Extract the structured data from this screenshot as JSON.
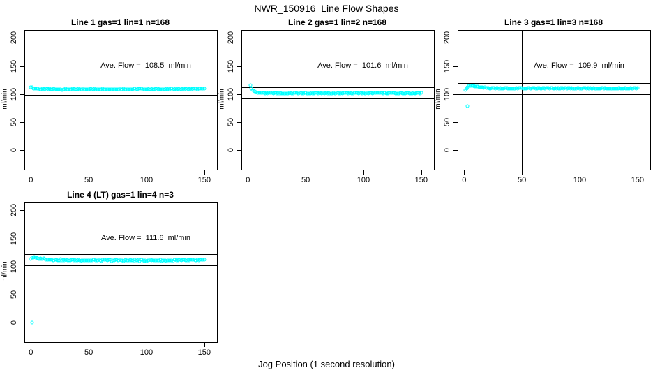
{
  "page": {
    "title": "NWR_150916  Line Flow Shapes",
    "xlabel": "Jog Position (1 second resolution)",
    "background": "#ffffff",
    "point_color": "#00ffff",
    "axis_color": "#000000"
  },
  "chart_data": [
    {
      "type": "scatter",
      "title": "Line 1 gas=1 lin=1 n=168",
      "ylabel": "ml/min",
      "annotation": "Ave. Flow =  108.5  ml/min",
      "ave_flow_ml_min": 108.5,
      "n": 168,
      "xlim": [
        -5,
        161
      ],
      "ylim": [
        -35.5,
        213
      ],
      "xticks": [
        0,
        50,
        100,
        150
      ],
      "yticks": [
        0,
        50,
        100,
        150,
        200
      ],
      "hlines": [
        118.5,
        98.5
      ],
      "vline": 50,
      "noise": 0.8,
      "x_start": 0,
      "x_end": 150,
      "points_keypoints": [
        [
          0,
          112.8
        ],
        [
          1,
          111.3
        ],
        [
          2,
          110.3
        ],
        [
          3,
          109.6
        ],
        [
          4,
          109.2
        ],
        [
          6,
          108.8
        ],
        [
          8,
          108.6
        ],
        [
          10,
          108.5
        ],
        [
          15,
          108.4
        ],
        [
          20,
          108.4
        ],
        [
          30,
          108.3
        ],
        [
          40,
          108.3
        ],
        [
          50,
          108.4
        ],
        [
          60,
          108.4
        ],
        [
          70,
          108.5
        ],
        [
          80,
          108.5
        ],
        [
          90,
          108.6
        ],
        [
          100,
          108.6
        ],
        [
          110,
          108.7
        ],
        [
          120,
          108.7
        ],
        [
          130,
          108.8
        ],
        [
          140,
          108.9
        ],
        [
          150,
          109.0
        ]
      ],
      "outliers": []
    },
    {
      "type": "scatter",
      "title": "Line 2 gas=1 lin=2 n=168",
      "ylabel": "ml/min",
      "annotation": "Ave. Flow =  101.6  ml/min",
      "ave_flow_ml_min": 101.6,
      "n": 168,
      "xlim": [
        -5,
        161
      ],
      "ylim": [
        -35.5,
        213
      ],
      "xticks": [
        0,
        50,
        100,
        150
      ],
      "yticks": [
        0,
        50,
        100,
        150,
        200
      ],
      "hlines": [
        111.6,
        91.6
      ],
      "vline": 50,
      "noise": 0.5,
      "x_start": 2,
      "x_end": 150,
      "points_keypoints": [
        [
          2,
          115.3
        ],
        [
          3,
          109.8
        ],
        [
          4,
          106.8
        ],
        [
          5,
          104.9
        ],
        [
          6,
          103.6
        ],
        [
          7,
          102.8
        ],
        [
          8,
          102.3
        ],
        [
          9,
          102.0
        ],
        [
          10,
          101.8
        ],
        [
          12,
          101.6
        ],
        [
          15,
          101.4
        ],
        [
          20,
          101.3
        ],
        [
          30,
          101.2
        ],
        [
          50,
          101.3
        ],
        [
          70,
          101.3
        ],
        [
          90,
          101.4
        ],
        [
          110,
          101.4
        ],
        [
          130,
          101.4
        ],
        [
          150,
          101.5
        ]
      ],
      "outliers": []
    },
    {
      "type": "scatter",
      "title": "Line 3 gas=1 lin=3 n=168",
      "ylabel": "ml/min",
      "annotation": "Ave. Flow =  109.9  ml/min",
      "ave_flow_ml_min": 109.9,
      "n": 168,
      "xlim": [
        -5,
        161
      ],
      "ylim": [
        -35.5,
        213
      ],
      "xticks": [
        0,
        50,
        100,
        150
      ],
      "yticks": [
        0,
        50,
        100,
        150,
        200
      ],
      "hlines": [
        119.9,
        99.9
      ],
      "vline": 50,
      "noise": 0.7,
      "x_start": 1,
      "x_end": 150,
      "points_keypoints": [
        [
          1,
          107.5
        ],
        [
          2,
          109.0
        ],
        [
          3,
          112.0
        ],
        [
          4,
          113.8
        ],
        [
          5,
          114.8
        ],
        [
          6,
          114.9
        ],
        [
          7,
          114.5
        ],
        [
          8,
          113.9
        ],
        [
          9,
          113.4
        ],
        [
          10,
          112.9
        ],
        [
          12,
          112.2
        ],
        [
          15,
          111.4
        ],
        [
          20,
          110.7
        ],
        [
          25,
          110.3
        ],
        [
          30,
          110.1
        ],
        [
          40,
          109.9
        ],
        [
          50,
          109.9
        ],
        [
          60,
          109.8
        ],
        [
          70,
          109.8
        ],
        [
          80,
          109.9
        ],
        [
          90,
          109.8
        ],
        [
          100,
          109.9
        ],
        [
          110,
          109.8
        ],
        [
          120,
          109.9
        ],
        [
          130,
          109.8
        ],
        [
          140,
          109.9
        ],
        [
          150,
          110.0
        ]
      ],
      "outliers": [
        [
          3,
          78
        ]
      ]
    },
    {
      "type": "scatter",
      "title": "Line 4 (LT) gas=1 lin=4 n=3",
      "ylabel": "ml/min",
      "annotation": "Ave. Flow =  111.6  ml/min",
      "ave_flow_ml_min": 111.6,
      "n": 3,
      "xlim": [
        -5,
        161
      ],
      "ylim": [
        -35.5,
        213
      ],
      "xticks": [
        0,
        50,
        100,
        150
      ],
      "yticks": [
        0,
        50,
        100,
        150,
        200
      ],
      "hlines": [
        121.6,
        101.6
      ],
      "vline": 50,
      "noise": 1.1,
      "x_start": 0,
      "x_end": 150,
      "points_keypoints": [
        [
          0,
          113.5
        ],
        [
          1,
          115.8
        ],
        [
          2,
          116.2
        ],
        [
          3,
          115.8
        ],
        [
          4,
          115.3
        ],
        [
          5,
          114.9
        ],
        [
          6,
          114.5
        ],
        [
          8,
          114.0
        ],
        [
          10,
          113.5
        ],
        [
          12,
          113.1
        ],
        [
          15,
          112.6
        ],
        [
          20,
          112.0
        ],
        [
          25,
          111.6
        ],
        [
          30,
          111.3
        ],
        [
          35,
          111.1
        ],
        [
          40,
          111.0
        ],
        [
          50,
          110.9
        ],
        [
          60,
          111.0
        ],
        [
          70,
          110.8
        ],
        [
          80,
          111.0
        ],
        [
          90,
          110.8
        ],
        [
          100,
          110.9
        ],
        [
          110,
          110.8
        ],
        [
          120,
          110.9
        ],
        [
          130,
          110.7
        ],
        [
          140,
          110.9
        ],
        [
          150,
          111.1
        ]
      ],
      "outliers": [
        [
          1,
          0
        ]
      ]
    }
  ]
}
